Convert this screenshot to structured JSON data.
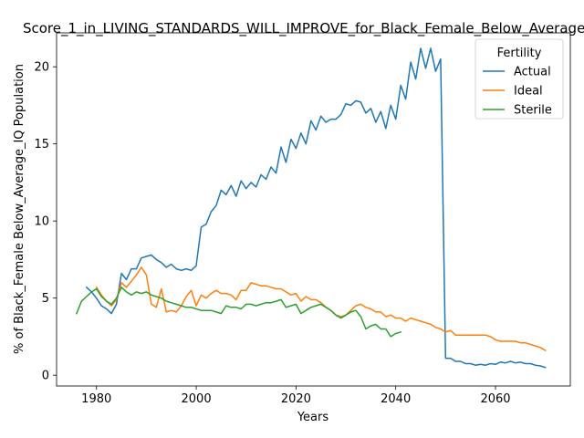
{
  "chart_data": {
    "type": "line",
    "title": "Score_1_in_LIVING_STANDARDS_WILL_IMPROVE_for_Black_Female_Below_Average_IQ",
    "xlabel": "Years",
    "ylabel": "% of Black_Female Below_Average_IQ Population",
    "xlim": [
      1972,
      2075
    ],
    "ylim": [
      -0.7,
      22.2
    ],
    "xticks": [
      1980,
      2000,
      2020,
      2040,
      2060
    ],
    "yticks": [
      0,
      5,
      10,
      15,
      20
    ],
    "grid": false,
    "legend": {
      "title": "Fertility",
      "placement": "top-right"
    },
    "series": [
      {
        "name": "Actual",
        "color": "#1f77b4",
        "x": [
          1978,
          1979,
          1980,
          1981,
          1982,
          1983,
          1984,
          1985,
          1986,
          1987,
          1988,
          1989,
          1990,
          1991,
          1992,
          1993,
          1994,
          1995,
          1996,
          1997,
          1998,
          1999,
          2000,
          2001,
          2002,
          2003,
          2004,
          2005,
          2006,
          2007,
          2008,
          2009,
          2010,
          2011,
          2012,
          2013,
          2014,
          2015,
          2016,
          2017,
          2018,
          2019,
          2020,
          2021,
          2022,
          2023,
          2024,
          2025,
          2026,
          2027,
          2028,
          2029,
          2030,
          2031,
          2032,
          2033,
          2034,
          2035,
          2036,
          2037,
          2038,
          2039,
          2040,
          2041,
          2042,
          2043,
          2044,
          2045,
          2046,
          2047,
          2048,
          2049,
          2050,
          2051,
          2052,
          2053,
          2054,
          2055,
          2056,
          2057,
          2058,
          2059,
          2060,
          2061,
          2062,
          2063,
          2064,
          2065,
          2066,
          2067,
          2068,
          2069,
          2070
        ],
        "y": [
          5.7,
          5.4,
          5.0,
          4.5,
          4.3,
          4.0,
          4.6,
          6.6,
          6.2,
          6.9,
          6.9,
          7.6,
          7.7,
          7.8,
          7.5,
          7.3,
          7.0,
          7.2,
          6.9,
          6.8,
          6.9,
          6.8,
          7.1,
          9.6,
          9.8,
          10.6,
          11.0,
          12.0,
          11.7,
          12.3,
          11.6,
          12.6,
          12.1,
          12.5,
          12.2,
          13.0,
          12.7,
          13.5,
          13.1,
          14.8,
          13.8,
          15.3,
          14.7,
          15.7,
          15.0,
          16.5,
          15.9,
          16.8,
          16.4,
          16.6,
          16.6,
          16.9,
          17.6,
          17.5,
          17.8,
          17.7,
          17.0,
          17.3,
          16.4,
          17.1,
          16.0,
          17.5,
          16.6,
          18.8,
          17.9,
          20.3,
          19.2,
          21.2,
          19.9,
          21.2,
          19.7,
          20.5,
          1.1,
          1.1,
          0.9,
          0.9,
          0.75,
          0.75,
          0.65,
          0.7,
          0.65,
          0.75,
          0.7,
          0.85,
          0.8,
          0.9,
          0.8,
          0.85,
          0.75,
          0.75,
          0.65,
          0.6,
          0.5
        ]
      },
      {
        "name": "Ideal",
        "color": "#ff7f0e",
        "x": [
          1980,
          1981,
          1982,
          1983,
          1984,
          1985,
          1986,
          1987,
          1988,
          1989,
          1990,
          1991,
          1992,
          1993,
          1994,
          1995,
          1996,
          1997,
          1998,
          1999,
          2000,
          2001,
          2002,
          2003,
          2004,
          2005,
          2006,
          2007,
          2008,
          2009,
          2010,
          2011,
          2012,
          2013,
          2014,
          2015,
          2016,
          2017,
          2018,
          2019,
          2020,
          2021,
          2022,
          2023,
          2024,
          2025,
          2026,
          2027,
          2028,
          2029,
          2030,
          2031,
          2032,
          2033,
          2034,
          2035,
          2036,
          2037,
          2038,
          2039,
          2040,
          2041,
          2042,
          2043,
          2044,
          2045,
          2046,
          2047,
          2048,
          2049,
          2050,
          2051,
          2052,
          2053,
          2054,
          2055,
          2056,
          2057,
          2058,
          2059,
          2060,
          2061,
          2062,
          2063,
          2064,
          2065,
          2066,
          2067,
          2068,
          2069,
          2070
        ],
        "y": [
          5.7,
          5.2,
          4.8,
          4.5,
          4.9,
          6.0,
          5.7,
          6.1,
          6.5,
          7.0,
          6.5,
          4.6,
          4.4,
          5.6,
          4.1,
          4.2,
          4.1,
          4.5,
          5.1,
          5.5,
          4.5,
          5.2,
          5.0,
          5.3,
          5.5,
          5.3,
          5.3,
          5.2,
          4.9,
          5.5,
          5.5,
          6.0,
          5.9,
          5.8,
          5.8,
          5.7,
          5.6,
          5.6,
          5.4,
          5.2,
          5.3,
          4.8,
          5.1,
          4.9,
          4.9,
          4.7,
          4.4,
          4.2,
          3.9,
          3.8,
          3.9,
          4.2,
          4.5,
          4.6,
          4.4,
          4.3,
          4.1,
          4.1,
          3.8,
          3.9,
          3.7,
          3.7,
          3.5,
          3.7,
          3.6,
          3.5,
          3.4,
          3.3,
          3.1,
          3.0,
          2.8,
          2.9,
          2.6,
          2.6,
          2.6,
          2.6,
          2.6,
          2.6,
          2.6,
          2.5,
          2.3,
          2.2,
          2.2,
          2.2,
          2.2,
          2.1,
          2.1,
          2.0,
          1.9,
          1.8,
          1.6
        ]
      },
      {
        "name": "Sterile",
        "color": "#2ca02c",
        "x": [
          1976,
          1977,
          1978,
          1979,
          1980,
          1981,
          1982,
          1983,
          1984,
          1985,
          1986,
          1987,
          1988,
          1989,
          1990,
          1991,
          1992,
          1993,
          1994,
          1995,
          1996,
          1997,
          1998,
          1999,
          2000,
          2001,
          2002,
          2003,
          2004,
          2005,
          2006,
          2007,
          2008,
          2009,
          2010,
          2011,
          2012,
          2013,
          2014,
          2015,
          2016,
          2017,
          2018,
          2019,
          2020,
          2021,
          2022,
          2023,
          2024,
          2025,
          2026,
          2027,
          2028,
          2029,
          2030,
          2031,
          2032,
          2033,
          2034,
          2035,
          2036,
          2037,
          2038,
          2039,
          2040,
          2041
        ],
        "y": [
          4.0,
          4.8,
          5.1,
          5.4,
          5.6,
          5.1,
          4.8,
          4.6,
          5.0,
          5.7,
          5.4,
          5.2,
          5.4,
          5.3,
          5.4,
          5.2,
          5.1,
          5.0,
          4.8,
          4.7,
          4.6,
          4.5,
          4.4,
          4.4,
          4.3,
          4.2,
          4.2,
          4.2,
          4.1,
          4.0,
          4.5,
          4.4,
          4.4,
          4.3,
          4.6,
          4.6,
          4.5,
          4.6,
          4.7,
          4.7,
          4.8,
          4.9,
          4.4,
          4.5,
          4.6,
          4.0,
          4.2,
          4.4,
          4.5,
          4.6,
          4.4,
          4.2,
          3.9,
          3.7,
          3.9,
          4.1,
          4.2,
          3.8,
          3.0,
          3.2,
          3.3,
          3.0,
          3.0,
          2.5,
          2.7,
          2.8
        ]
      }
    ]
  }
}
